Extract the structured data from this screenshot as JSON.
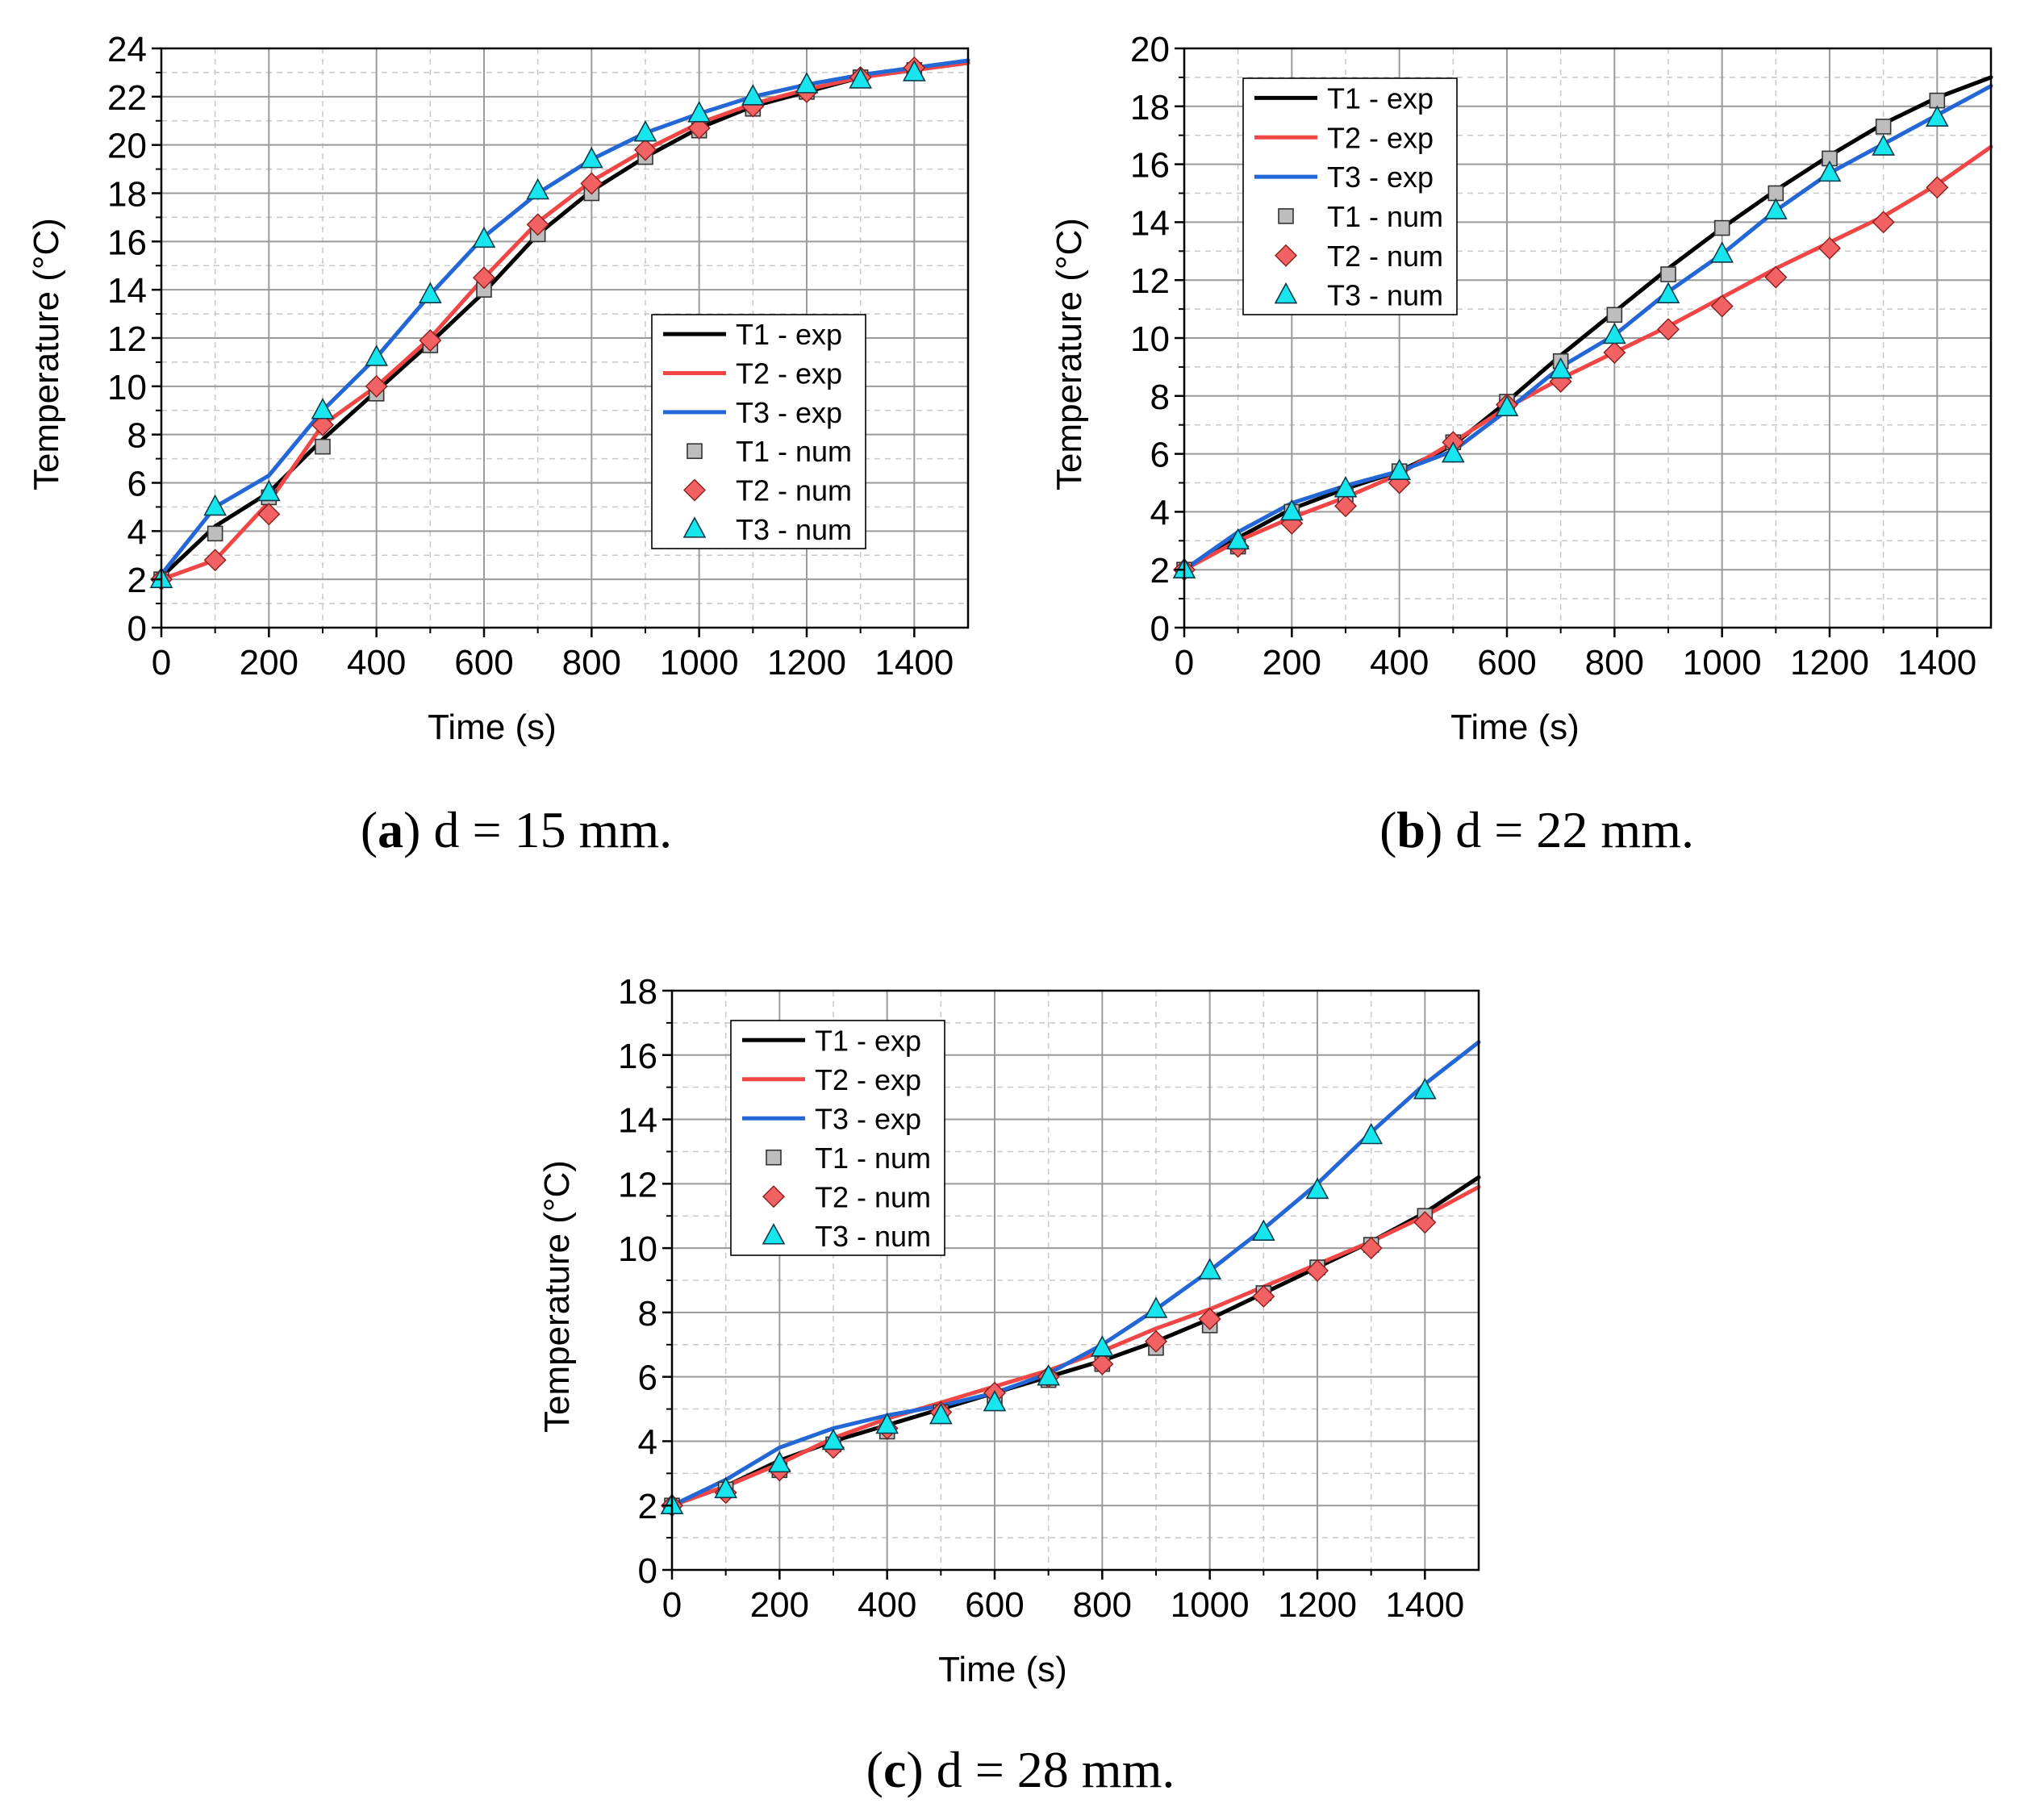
{
  "figure": {
    "x_label": "Time (s)",
    "y_label": "Temperature (°C)",
    "legend": [
      "T1 - exp",
      "T2 - exp",
      "T3 - exp",
      "T1 - num",
      "T2 - num",
      "T3 - num"
    ],
    "colors": {
      "T1": "#000000",
      "T2": "#f04646",
      "T3": "#2366d6",
      "T1_num": "#bdbdbd",
      "T2_num": "#f26262",
      "T3_num": "#18e6ee",
      "grid": "#9a9a9a"
    }
  },
  "chart_data": [
    {
      "type": "line",
      "panel": "a",
      "caption_letter": "a",
      "caption_text": " d = 15 mm.",
      "xlabel": "Time (s)",
      "ylabel": "Temperature (°C)",
      "xlim": [
        0,
        1500
      ],
      "ylim": [
        0,
        24
      ],
      "xticks": [
        0,
        200,
        400,
        600,
        800,
        1000,
        1200,
        1400
      ],
      "yticks": [
        0,
        2,
        4,
        6,
        8,
        10,
        12,
        14,
        16,
        18,
        20,
        22,
        24
      ],
      "legend_position": "center-right",
      "series": [
        {
          "name": "T1 - exp",
          "style": "line",
          "x": [
            0,
            100,
            200,
            300,
            400,
            500,
            600,
            700,
            800,
            900,
            1000,
            1100,
            1200,
            1300,
            1400,
            1500
          ],
          "y": [
            2.1,
            4.2,
            5.6,
            7.8,
            9.8,
            11.8,
            13.9,
            16.3,
            18.1,
            19.5,
            20.7,
            21.6,
            22.2,
            22.8,
            23.2,
            23.4
          ]
        },
        {
          "name": "T2 - exp",
          "style": "line",
          "x": [
            0,
            100,
            200,
            300,
            400,
            500,
            600,
            700,
            800,
            900,
            1000,
            1100,
            1200,
            1300,
            1400,
            1500
          ],
          "y": [
            2.0,
            2.8,
            5.2,
            8.4,
            10.0,
            12.0,
            14.5,
            16.8,
            18.5,
            19.8,
            20.9,
            21.7,
            22.3,
            22.8,
            23.1,
            23.4
          ]
        },
        {
          "name": "T3 - exp",
          "style": "line",
          "x": [
            0,
            100,
            200,
            300,
            400,
            500,
            600,
            700,
            800,
            900,
            1000,
            1100,
            1200,
            1300,
            1400,
            1500
          ],
          "y": [
            2.2,
            5.0,
            6.3,
            9.0,
            11.2,
            13.8,
            16.2,
            18.0,
            19.4,
            20.5,
            21.3,
            22.0,
            22.5,
            22.9,
            23.2,
            23.5
          ]
        },
        {
          "name": "T1 - num",
          "style": "marker",
          "marker": "square",
          "x": [
            0,
            100,
            200,
            300,
            400,
            500,
            600,
            700,
            800,
            900,
            1000,
            1100,
            1200,
            1300,
            1400
          ],
          "y": [
            2.0,
            3.9,
            5.4,
            7.5,
            9.7,
            11.7,
            14.0,
            16.3,
            18.0,
            19.5,
            20.6,
            21.5,
            22.2,
            22.8,
            23.1
          ]
        },
        {
          "name": "T2 - num",
          "style": "marker",
          "marker": "diamond",
          "x": [
            0,
            100,
            200,
            300,
            400,
            500,
            600,
            700,
            800,
            900,
            1000,
            1100,
            1200,
            1300,
            1400
          ],
          "y": [
            2.0,
            2.8,
            4.7,
            8.4,
            10.0,
            11.9,
            14.5,
            16.7,
            18.4,
            19.8,
            20.7,
            21.6,
            22.2,
            22.8,
            23.2
          ]
        },
        {
          "name": "T3 - num",
          "style": "marker",
          "marker": "triangle",
          "x": [
            0,
            100,
            200,
            300,
            400,
            500,
            600,
            700,
            800,
            900,
            1000,
            1100,
            1200,
            1300,
            1400
          ],
          "y": [
            2.0,
            5.0,
            5.6,
            9.0,
            11.2,
            13.8,
            16.1,
            18.1,
            19.4,
            20.5,
            21.3,
            22.0,
            22.5,
            22.7,
            23.0
          ]
        }
      ]
    },
    {
      "type": "line",
      "panel": "b",
      "caption_letter": "b",
      "caption_text": " d = 22 mm.",
      "xlabel": "Time (s)",
      "ylabel": "Temperature (°C)",
      "xlim": [
        0,
        1500
      ],
      "ylim": [
        0,
        20
      ],
      "xticks": [
        0,
        200,
        400,
        600,
        800,
        1000,
        1200,
        1400
      ],
      "yticks": [
        0,
        2,
        4,
        6,
        8,
        10,
        12,
        14,
        16,
        18,
        20
      ],
      "legend_position": "top-left",
      "series": [
        {
          "name": "T1 - exp",
          "style": "line",
          "x": [
            0,
            100,
            200,
            300,
            400,
            500,
            600,
            700,
            800,
            900,
            1000,
            1100,
            1200,
            1300,
            1400,
            1500
          ],
          "y": [
            2.0,
            3.1,
            4.1,
            4.8,
            5.4,
            6.3,
            7.8,
            9.4,
            10.9,
            12.4,
            13.8,
            15.1,
            16.3,
            17.4,
            18.3,
            19.0
          ]
        },
        {
          "name": "T2 - exp",
          "style": "line",
          "x": [
            0,
            100,
            200,
            300,
            400,
            500,
            600,
            700,
            800,
            900,
            1000,
            1100,
            1200,
            1300,
            1400,
            1500
          ],
          "y": [
            2.0,
            3.0,
            3.8,
            4.5,
            5.3,
            6.4,
            7.6,
            8.6,
            9.5,
            10.4,
            11.4,
            12.4,
            13.3,
            14.2,
            15.3,
            16.6
          ]
        },
        {
          "name": "T3 - exp",
          "style": "line",
          "x": [
            0,
            100,
            200,
            300,
            400,
            500,
            600,
            700,
            800,
            900,
            1000,
            1100,
            1200,
            1300,
            1400,
            1500
          ],
          "y": [
            2.0,
            3.3,
            4.3,
            4.9,
            5.4,
            6.1,
            7.5,
            9.0,
            10.1,
            11.6,
            12.9,
            14.4,
            15.7,
            16.7,
            17.7,
            18.7
          ]
        },
        {
          "name": "T1 - num",
          "style": "marker",
          "marker": "square",
          "x": [
            0,
            100,
            200,
            300,
            400,
            500,
            600,
            700,
            800,
            900,
            1000,
            1100,
            1200,
            1300,
            1400
          ],
          "y": [
            2.0,
            2.8,
            4.0,
            4.6,
            5.4,
            6.4,
            7.8,
            9.2,
            10.8,
            12.2,
            13.8,
            15.0,
            16.2,
            17.3,
            18.2
          ]
        },
        {
          "name": "T2 - num",
          "style": "marker",
          "marker": "diamond",
          "x": [
            0,
            100,
            200,
            300,
            400,
            500,
            600,
            700,
            800,
            900,
            1000,
            1100,
            1200,
            1300,
            1400
          ],
          "y": [
            2.0,
            2.8,
            3.6,
            4.2,
            5.0,
            6.4,
            7.7,
            8.5,
            9.5,
            10.3,
            11.1,
            12.1,
            13.1,
            14.0,
            15.2
          ]
        },
        {
          "name": "T3 - num",
          "style": "marker",
          "marker": "triangle",
          "x": [
            0,
            100,
            200,
            300,
            400,
            500,
            600,
            700,
            800,
            900,
            1000,
            1100,
            1200,
            1300,
            1400
          ],
          "y": [
            2.0,
            3.0,
            4.0,
            4.8,
            5.4,
            6.0,
            7.6,
            8.9,
            10.1,
            11.5,
            12.9,
            14.4,
            15.7,
            16.6,
            17.6
          ]
        }
      ]
    },
    {
      "type": "line",
      "panel": "c",
      "caption_letter": "c",
      "caption_text": " d = 28 mm.",
      "xlabel": "Time (s)",
      "ylabel": "Temperature (°C)",
      "xlim": [
        0,
        1500
      ],
      "ylim": [
        0,
        18
      ],
      "xticks": [
        0,
        200,
        400,
        600,
        800,
        1000,
        1200,
        1400
      ],
      "yticks": [
        0,
        2,
        4,
        6,
        8,
        10,
        12,
        14,
        16,
        18
      ],
      "legend_position": "top-left",
      "series": [
        {
          "name": "T1 - exp",
          "style": "line",
          "x": [
            0,
            100,
            200,
            300,
            400,
            500,
            600,
            700,
            800,
            900,
            1000,
            1100,
            1200,
            1300,
            1400,
            1500
          ],
          "y": [
            2.0,
            2.6,
            3.4,
            4.0,
            4.5,
            5.0,
            5.5,
            6.0,
            6.5,
            7.1,
            7.8,
            8.6,
            9.4,
            10.2,
            11.1,
            12.2
          ]
        },
        {
          "name": "T2 - exp",
          "style": "line",
          "x": [
            0,
            100,
            200,
            300,
            400,
            500,
            600,
            700,
            800,
            900,
            1000,
            1100,
            1200,
            1300,
            1400,
            1500
          ],
          "y": [
            2.0,
            2.6,
            3.3,
            4.1,
            4.7,
            5.2,
            5.7,
            6.2,
            6.8,
            7.5,
            8.1,
            8.8,
            9.5,
            10.2,
            11.0,
            11.9
          ]
        },
        {
          "name": "T3 - exp",
          "style": "line",
          "x": [
            0,
            100,
            200,
            300,
            400,
            500,
            600,
            700,
            800,
            900,
            1000,
            1100,
            1200,
            1300,
            1400,
            1500
          ],
          "y": [
            2.0,
            2.8,
            3.8,
            4.4,
            4.8,
            5.1,
            5.5,
            6.1,
            7.0,
            8.1,
            9.3,
            10.6,
            12.0,
            13.6,
            15.1,
            16.4
          ]
        },
        {
          "name": "T1 - num",
          "style": "marker",
          "marker": "square",
          "x": [
            0,
            100,
            200,
            300,
            400,
            500,
            600,
            700,
            800,
            900,
            1000,
            1100,
            1200,
            1300,
            1400
          ],
          "y": [
            2.0,
            2.5,
            3.1,
            3.9,
            4.3,
            4.9,
            5.4,
            5.9,
            6.4,
            6.9,
            7.6,
            8.6,
            9.4,
            10.1,
            11.0
          ]
        },
        {
          "name": "T2 - num",
          "style": "marker",
          "marker": "diamond",
          "x": [
            0,
            100,
            200,
            300,
            400,
            500,
            600,
            700,
            800,
            900,
            1000,
            1100,
            1200,
            1300,
            1400
          ],
          "y": [
            2.0,
            2.4,
            3.1,
            3.8,
            4.4,
            4.9,
            5.5,
            6.0,
            6.4,
            7.1,
            7.8,
            8.5,
            9.3,
            10.0,
            10.8
          ]
        },
        {
          "name": "T3 - num",
          "style": "marker",
          "marker": "triangle",
          "x": [
            0,
            100,
            200,
            300,
            400,
            500,
            600,
            700,
            800,
            900,
            1000,
            1100,
            1200,
            1300,
            1400
          ],
          "y": [
            2.0,
            2.5,
            3.3,
            4.0,
            4.5,
            4.8,
            5.2,
            6.0,
            6.9,
            8.1,
            9.3,
            10.5,
            11.8,
            13.5,
            14.9
          ]
        }
      ]
    }
  ]
}
